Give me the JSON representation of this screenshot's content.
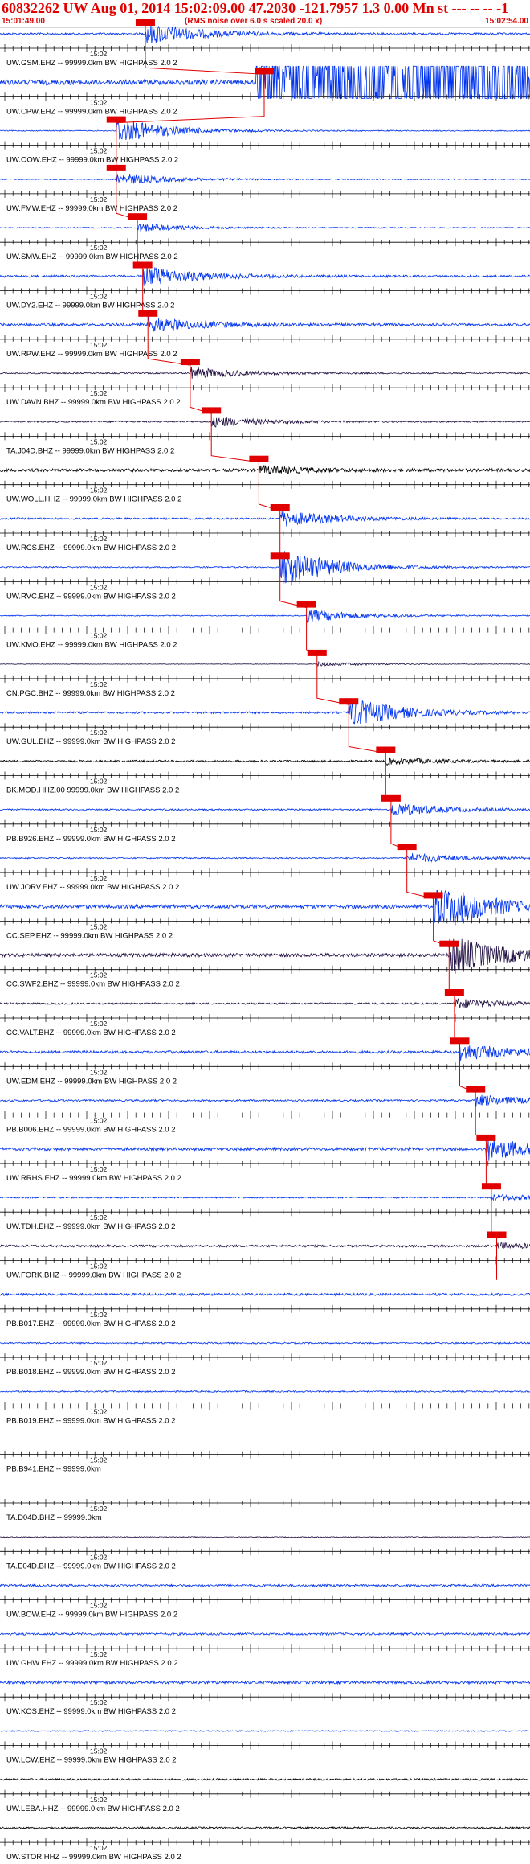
{
  "header": {
    "title": "60832262 UW Aug 01, 2014 15:02:09.00   47.2030 -121.7957  1.3 0.00 Mn st --- -- --  -1",
    "start_time": "15:01:49.00",
    "note": "(RMS noise over 6.0 s scaled 20.0 x)",
    "end_time": "15:02:54.00"
  },
  "tick_label": "15:02",
  "colors": {
    "header_text": "#e00000",
    "pick": "#e00000",
    "trace_blue": "#0033ee",
    "trace_dark": "#221144",
    "trace_black": "#000000"
  },
  "traces": [
    {
      "label": "UW.GSM.EHZ -- 99999.0km BW  HIGHPASS  2.0  2",
      "color": "blue",
      "amp": 0.55,
      "pick": 0.275,
      "noise": 0.25,
      "burst": 1.0
    },
    {
      "label": "UW.CPW.EHZ -- 99999.0km BW  HIGHPASS  2.0  2",
      "color": "blue",
      "amp": 1.0,
      "pick": 0.5,
      "noise": 0.35,
      "burst": 2.2,
      "saturated": true
    },
    {
      "label": "UW.OOW.EHZ -- 99999.0km BW  HIGHPASS  2.0  2",
      "color": "blue",
      "amp": 0.35,
      "pick": 0.22,
      "noise": 0.2,
      "burst": 1.8
    },
    {
      "label": "UW.FMW.EHZ -- 99999.0km BW  HIGHPASS  2.0  2",
      "color": "blue",
      "amp": 0.35,
      "pick": 0.22,
      "noise": 0.2,
      "burst": 0.8
    },
    {
      "label": "UW.SMW.EHZ -- 99999.0km BW  HIGHPASS  2.0  2",
      "color": "blue",
      "amp": 0.35,
      "pick": 0.26,
      "noise": 0.2,
      "burst": 0.6
    },
    {
      "label": "UW.DY2.EHZ -- 99999.0km BW  HIGHPASS  2.0  2",
      "color": "blue",
      "amp": 0.5,
      "pick": 0.27,
      "noise": 0.3,
      "burst": 1.0
    },
    {
      "label": "UW.RPW.EHZ -- 99999.0km BW  HIGHPASS  2.0  2",
      "color": "blue",
      "amp": 0.45,
      "pick": 0.28,
      "noise": 0.4,
      "burst": 0.8
    },
    {
      "label": "UW.DAVN.BHZ -- 99999.0km BW  HIGHPASS  2.0  2",
      "color": "dark",
      "amp": 0.35,
      "pick": 0.36,
      "noise": 0.25,
      "burst": 0.8
    },
    {
      "label": "TA.J04D.BHZ -- 99999.0km BW  HIGHPASS  2.0  2",
      "color": "dark",
      "amp": 0.35,
      "pick": 0.4,
      "noise": 0.3,
      "burst": 0.7
    },
    {
      "label": "UW.WOLL.HHZ -- 99999.0km BW  HIGHPASS  2.0  2",
      "color": "black",
      "amp": 0.45,
      "pick": 0.49,
      "noise": 0.45,
      "burst": 0.4
    },
    {
      "label": "UW.RCS.EHZ -- 99999.0km BW  HIGHPASS  2.0  2",
      "color": "blue",
      "amp": 0.4,
      "pick": 0.53,
      "noise": 0.3,
      "burst": 1.0
    },
    {
      "label": "UW.RVC.EHZ -- 99999.0km BW  HIGHPASS  2.0  2",
      "color": "blue",
      "amp": 0.6,
      "pick": 0.53,
      "noise": 0.15,
      "burst": 1.6
    },
    {
      "label": "UW.KMO.EHZ -- 99999.0km BW  HIGHPASS  2.0  2",
      "color": "blue",
      "amp": 0.35,
      "pick": 0.58,
      "noise": 0.2,
      "burst": 0.9
    },
    {
      "label": "CN.PGC.BHZ -- 99999.0km BW  HIGHPASS  2.0  2",
      "color": "dark",
      "amp": 0.25,
      "pick": 0.6,
      "noise": 0.15,
      "burst": 0.4
    },
    {
      "label": "UW.GUL.EHZ -- 99999.0km BW  HIGHPASS  2.0  2",
      "color": "blue",
      "amp": 0.45,
      "pick": 0.66,
      "noise": 0.3,
      "burst": 1.6
    },
    {
      "label": "BK.MOD.HHZ.00 99999.0km BW  HIGHPASS  2.0  2",
      "color": "black",
      "amp": 0.3,
      "pick": 0.73,
      "noise": 0.45,
      "burst": 0.5
    },
    {
      "label": "PB.B926.EHZ -- 99999.0km BW  HIGHPASS  2.0  2",
      "color": "blue",
      "amp": 0.35,
      "pick": 0.74,
      "noise": 0.3,
      "burst": 1.0
    },
    {
      "label": "UW.JORV.EHZ -- 99999.0km BW  HIGHPASS  2.0  2",
      "color": "blue",
      "amp": 0.3,
      "pick": 0.77,
      "noise": 0.3,
      "burst": 0.8
    },
    {
      "label": "CC.SEP.EHZ -- 99999.0km BW  HIGHPASS  2.0  2",
      "color": "blue",
      "amp": 0.75,
      "pick": 0.82,
      "noise": 0.35,
      "burst": 1.6
    },
    {
      "label": "CC.SWF2.BHZ -- 99999.0km BW  HIGHPASS  2.0  2",
      "color": "dark",
      "amp": 0.6,
      "pick": 0.85,
      "noise": 0.4,
      "burst": 1.6
    },
    {
      "label": "CC.VALT.BHZ -- 99999.0km BW  HIGHPASS  2.0  2",
      "color": "dark",
      "amp": 0.3,
      "pick": 0.86,
      "noise": 0.4,
      "burst": 0.8
    },
    {
      "label": "UW.EDM.EHZ -- 99999.0km BW  HIGHPASS  2.0  2",
      "color": "blue",
      "amp": 0.45,
      "pick": 0.87,
      "noise": 0.4,
      "burst": 0.9
    },
    {
      "label": "PB.B006.EHZ -- 99999.0km BW  HIGHPASS  2.0  2",
      "color": "blue",
      "amp": 0.35,
      "pick": 0.9,
      "noise": 0.35,
      "burst": 0.8
    },
    {
      "label": "UW.RRHS.EHZ -- 99999.0km BW  HIGHPASS  2.0  2",
      "color": "blue",
      "amp": 0.45,
      "pick": 0.92,
      "noise": 0.45,
      "burst": 1.2
    },
    {
      "label": "UW.TDH.EHZ -- 99999.0km BW  HIGHPASS  2.0  2",
      "color": "blue",
      "amp": 0.25,
      "pick": 0.93,
      "noise": 0.4,
      "burst": 0.6
    },
    {
      "label": "UW.FORK.BHZ -- 99999.0km BW  HIGHPASS  2.0  2",
      "color": "dark",
      "amp": 0.3,
      "pick": 0.94,
      "noise": 0.5,
      "burst": 0.4
    },
    {
      "label": "PB.B017.EHZ -- 99999.0km BW  HIGHPASS  2.0  2",
      "color": "blue",
      "amp": 0.3,
      "noise": 0.55
    },
    {
      "label": "PB.B018.EHZ -- 99999.0km BW  HIGHPASS  2.0  2",
      "color": "blue",
      "amp": 0.2,
      "noise": 0.5
    },
    {
      "label": "PB.B019.EHZ -- 99999.0km BW  HIGHPASS  2.0  2",
      "color": "blue",
      "amp": 0.2,
      "noise": 0.5
    },
    {
      "label": "PB.B941.EHZ -- 99999.0km",
      "color": "blue",
      "amp": 0.0,
      "noise": 0.0
    },
    {
      "label": "TA.D04D.BHZ -- 99999.0km",
      "color": "blue",
      "amp": 0.0,
      "noise": 0.0
    },
    {
      "label": "TA.E04D.BHZ -- 99999.0km BW  HIGHPASS  2.0  2",
      "color": "dark",
      "amp": 0.2,
      "noise": 0.3
    },
    {
      "label": "UW.BOW.EHZ -- 99999.0km BW  HIGHPASS  2.0  2",
      "color": "blue",
      "amp": 0.3,
      "noise": 0.5
    },
    {
      "label": "UW.GHW.EHZ -- 99999.0km BW  HIGHPASS  2.0  2",
      "color": "blue",
      "amp": 0.3,
      "noise": 0.5
    },
    {
      "label": "UW.KOS.EHZ -- 99999.0km BW  HIGHPASS  2.0  2",
      "color": "blue",
      "amp": 0.35,
      "noise": 0.55
    },
    {
      "label": "UW.LCW.EHZ -- 99999.0km BW  HIGHPASS  2.0  2",
      "color": "blue",
      "amp": 0.2,
      "noise": 0.4
    },
    {
      "label": "UW.LEBA.HHZ -- 99999.0km BW  HIGHPASS  2.0  2",
      "color": "black",
      "amp": 0.25,
      "noise": 0.5
    },
    {
      "label": "UW.STOR.HHZ -- 99999.0km BW  HIGHPASS  2.0  2",
      "color": "black",
      "amp": 0.25,
      "noise": 0.5
    }
  ]
}
